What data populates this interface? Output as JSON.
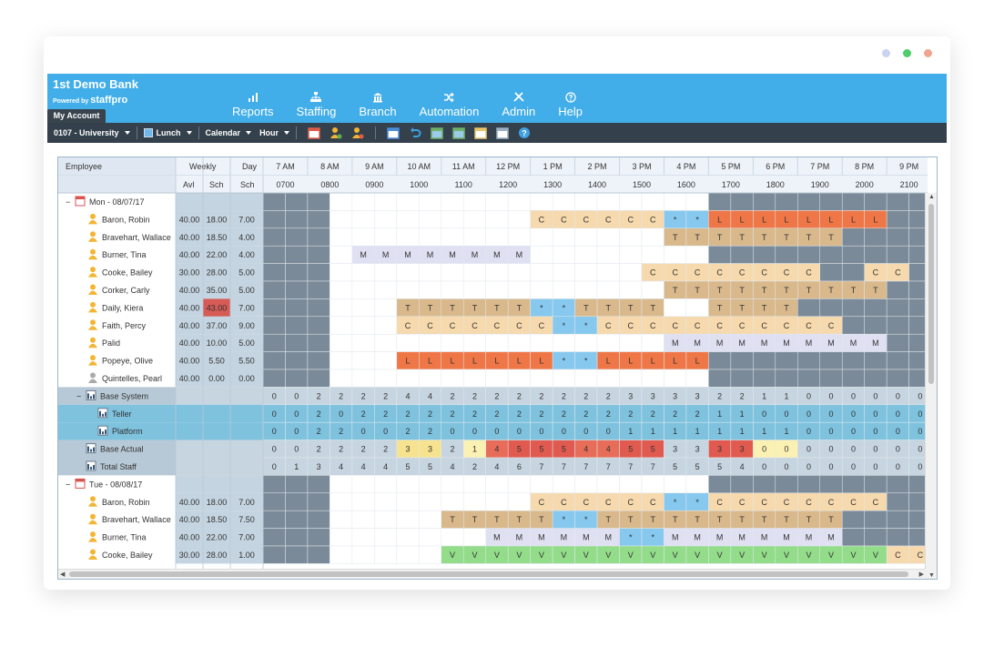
{
  "window": {
    "dot_colors": [
      "#c9d3ef",
      "#4fce6b",
      "#f1a591"
    ]
  },
  "app": {
    "bank_name": "1st Demo Bank",
    "powered_by": "Powered by",
    "brand": "staffpro",
    "my_account": "My Account"
  },
  "nav": [
    {
      "label": "Reports",
      "icon": "bar-chart-icon"
    },
    {
      "label": "Staffing",
      "icon": "org-chart-icon"
    },
    {
      "label": "Branch",
      "icon": "bank-icon"
    },
    {
      "label": "Automation",
      "icon": "shuffle-icon"
    },
    {
      "label": "Admin",
      "icon": "tools-icon"
    },
    {
      "label": "Help",
      "icon": "help-icon"
    }
  ],
  "toolbar": {
    "branch": "0107 - University",
    "lunch": "Lunch",
    "view": "Calendar",
    "interval": "Hour",
    "icons": [
      "calendar-icon",
      "add-user-icon",
      "remove-user-icon",
      "save-icon",
      "undo-icon",
      "export-icon",
      "import-icon",
      "clipboard-icon",
      "report-icon",
      "help-icon"
    ]
  },
  "grid": {
    "headers": {
      "employee": "Employee",
      "weekly": "Weekly",
      "day": "Day",
      "avl": "Avl",
      "sch": "Sch",
      "day_sch": "Sch"
    },
    "hours": [
      "7 AM",
      "8 AM",
      "9 AM",
      "10 AM",
      "11 AM",
      "12 PM",
      "1 PM",
      "2 PM",
      "3 PM",
      "4 PM",
      "5 PM",
      "6 PM",
      "7 PM",
      "8 PM",
      "9 PM"
    ],
    "times": [
      "0700",
      "0800",
      "0900",
      "1000",
      "1100",
      "1200",
      "1300",
      "1400",
      "1500",
      "1600",
      "1700",
      "1800",
      "1900",
      "2000",
      "2100"
    ],
    "code_colors": {
      "C": "#f6d9ad",
      "T": "#d9b98c",
      "M": "#e0e0f3",
      "L": "#ef7747",
      "V": "#93dc8a",
      "*": "#86c8ee"
    },
    "count_colors": {
      "1": "#fbf1b3",
      "3": "#f7e38f",
      "4": "#e76d59",
      "5": "#e05a50",
      "0y": "#fbf1b3"
    },
    "rows": [
      {
        "type": "date",
        "label": "Mon - 08/07/17",
        "toggle": "−"
      },
      {
        "type": "emp",
        "name": "Baron, Robin",
        "avl": "40.00",
        "sch": "18.00",
        "day": "7.00",
        "shift": "............CCCCCC**LLLLLLLL.........."
      },
      {
        "type": "emp",
        "name": "Bravehart, Wallace",
        "avl": "40.00",
        "sch": "18.50",
        "day": "4.00",
        "shift": "..................TTTTTTTT.........."
      },
      {
        "type": "emp",
        "name": "Burner, Tina",
        "avl": "40.00",
        "sch": "22.00",
        "day": "4.00",
        "shift": "....MMMMMMMM............................"
      },
      {
        "type": "emp",
        "name": "Cooke, Bailey",
        "avl": "30.00",
        "sch": "28.00",
        "day": "5.00",
        "shift": ".................CCCCCCCC..CC........."
      },
      {
        "type": "emp",
        "name": "Corker, Carly",
        "avl": "40.00",
        "sch": "35.00",
        "day": "5.00",
        "shift": "..................TTTTTTTTTT.........."
      },
      {
        "type": "emp",
        "name": "Daily, Kiera",
        "avl": "40.00",
        "sch": "43.00",
        "day": "7.00",
        "over": true,
        "shift": "......TTTTTT**TTTT..TTTT.............."
      },
      {
        "type": "emp",
        "name": "Faith, Percy",
        "avl": "40.00",
        "sch": "37.00",
        "day": "9.00",
        "shift": "......CCCCCCC**CCCCCCCCCCC............"
      },
      {
        "type": "emp",
        "name": "Palid",
        "avl": "40.00",
        "sch": "10.00",
        "day": "5.00",
        "shift": "..................MMMMMMMMMM.........."
      },
      {
        "type": "emp",
        "name": "Popeye, Olive",
        "avl": "40.00",
        "sch": "5.50",
        "day": "5.50",
        "shift": "......LLLLLLL**LLLLL.................."
      },
      {
        "type": "emp",
        "name": "Quintelles, Pearl",
        "avl": "40.00",
        "sch": "0.00",
        "day": "0.00",
        "grey": true,
        "shift": ""
      },
      {
        "type": "sum",
        "label": "Base System",
        "toggle": "−",
        "values": [
          "0",
          "0",
          "2",
          "2",
          "2",
          "2",
          "4",
          "4",
          "2",
          "2",
          "2",
          "2",
          "2",
          "2",
          "2",
          "2",
          "3",
          "3",
          "3",
          "3",
          "2",
          "2",
          "1",
          "1",
          "0",
          "0",
          "0",
          "0",
          "0",
          "0"
        ]
      },
      {
        "type": "sub",
        "label": "Teller",
        "values": [
          "0",
          "0",
          "2",
          "0",
          "2",
          "2",
          "2",
          "2",
          "2",
          "2",
          "2",
          "2",
          "2",
          "2",
          "2",
          "2",
          "2",
          "2",
          "2",
          "2",
          "1",
          "1",
          "0",
          "0",
          "0",
          "0",
          "0",
          "0",
          "0",
          "0"
        ]
      },
      {
        "type": "sub",
        "label": "Platform",
        "values": [
          "0",
          "0",
          "2",
          "2",
          "0",
          "0",
          "2",
          "2",
          "0",
          "0",
          "0",
          "0",
          "0",
          "0",
          "0",
          "0",
          "1",
          "1",
          "1",
          "1",
          "1",
          "1",
          "1",
          "1",
          "0",
          "0",
          "0",
          "0",
          "0",
          "0"
        ]
      },
      {
        "type": "sum",
        "label": "Base Actual",
        "values": [
          "0",
          "0",
          "2",
          "2",
          "2",
          "2",
          "3",
          "3",
          "2",
          "1",
          "4",
          "5",
          "5",
          "5",
          "4",
          "4",
          "5",
          "5",
          "3",
          "3",
          "3",
          "3",
          "0",
          "0",
          "0",
          "0",
          "0",
          "0",
          "0",
          "0"
        ],
        "colors": [
          "",
          "",
          "",
          "",
          "",
          "",
          "3",
          "3",
          "",
          "1",
          "4",
          "5",
          "5",
          "5",
          "4",
          "4",
          "5",
          "5",
          "",
          "",
          "5",
          "5",
          "0y",
          "0y",
          "",
          "",
          "",
          "",
          "",
          ""
        ]
      },
      {
        "type": "sum",
        "label": "Total Staff",
        "values": [
          "0",
          "1",
          "3",
          "4",
          "4",
          "4",
          "5",
          "5",
          "4",
          "2",
          "4",
          "6",
          "7",
          "7",
          "7",
          "7",
          "7",
          "7",
          "5",
          "5",
          "5",
          "4",
          "0",
          "0",
          "0",
          "0",
          "0",
          "0",
          "0",
          "0"
        ]
      },
      {
        "type": "date",
        "label": "Tue - 08/08/17",
        "toggle": "−"
      },
      {
        "type": "emp",
        "name": "Baron, Robin",
        "avl": "40.00",
        "sch": "18.00",
        "day": "7.00",
        "shift": "............CCCCCC**CCCCCCCC.........."
      },
      {
        "type": "emp",
        "name": "Bravehart, Wallace",
        "avl": "40.00",
        "sch": "18.50",
        "day": "7.50",
        "shift": "........TTTTT**TTTTTTTTTTT..............."
      },
      {
        "type": "emp",
        "name": "Burner, Tina",
        "avl": "40.00",
        "sch": "22.00",
        "day": "7.00",
        "shift": "..........MMMMMM**MMMMMMMM.........."
      },
      {
        "type": "emp",
        "name": "Cooke, Bailey",
        "avl": "30.00",
        "sch": "28.00",
        "day": "1.00",
        "shift": "........VVVVVVVVVVVVVVVVVVVVCC.........."
      }
    ]
  }
}
